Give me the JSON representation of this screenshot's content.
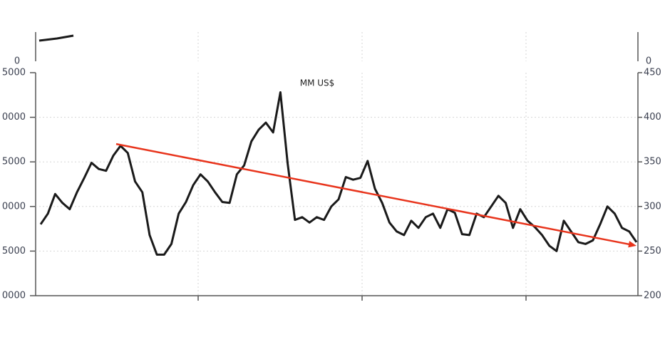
{
  "chart_data": {
    "type": "line",
    "title": "MM US$",
    "left_axis_labels": [
      "5000",
      "0000",
      "5000",
      "0000",
      "5000",
      "0000"
    ],
    "ylim": [
      200,
      450
    ],
    "yticks": [
      450,
      400,
      350,
      300,
      250,
      200
    ],
    "grid": true,
    "series": [
      {
        "color": "#1a1a1a",
        "values": [
          280,
          292,
          314,
          304,
          297,
          316,
          332,
          349,
          342,
          340,
          357,
          368,
          360,
          328,
          316,
          268,
          246,
          246,
          258,
          292,
          305,
          324,
          336,
          328,
          316,
          305,
          304,
          336,
          346,
          373,
          386,
          394,
          383,
          428,
          348,
          285,
          288,
          282,
          288,
          285,
          300,
          308,
          333,
          330,
          332,
          351,
          320,
          304,
          282,
          272,
          268,
          284,
          276,
          288,
          292,
          276,
          297,
          293,
          269,
          268,
          292,
          288,
          300,
          312,
          304,
          276,
          297,
          284,
          277,
          268,
          256,
          250,
          284,
          272,
          260,
          258,
          262,
          280,
          300,
          292,
          276,
          272,
          260
        ]
      }
    ],
    "trend_line": {
      "color": "#e8341c",
      "values": [
        370,
        256
      ]
    },
    "top_panel": {
      "left_label": "0",
      "right_label": "0"
    }
  }
}
